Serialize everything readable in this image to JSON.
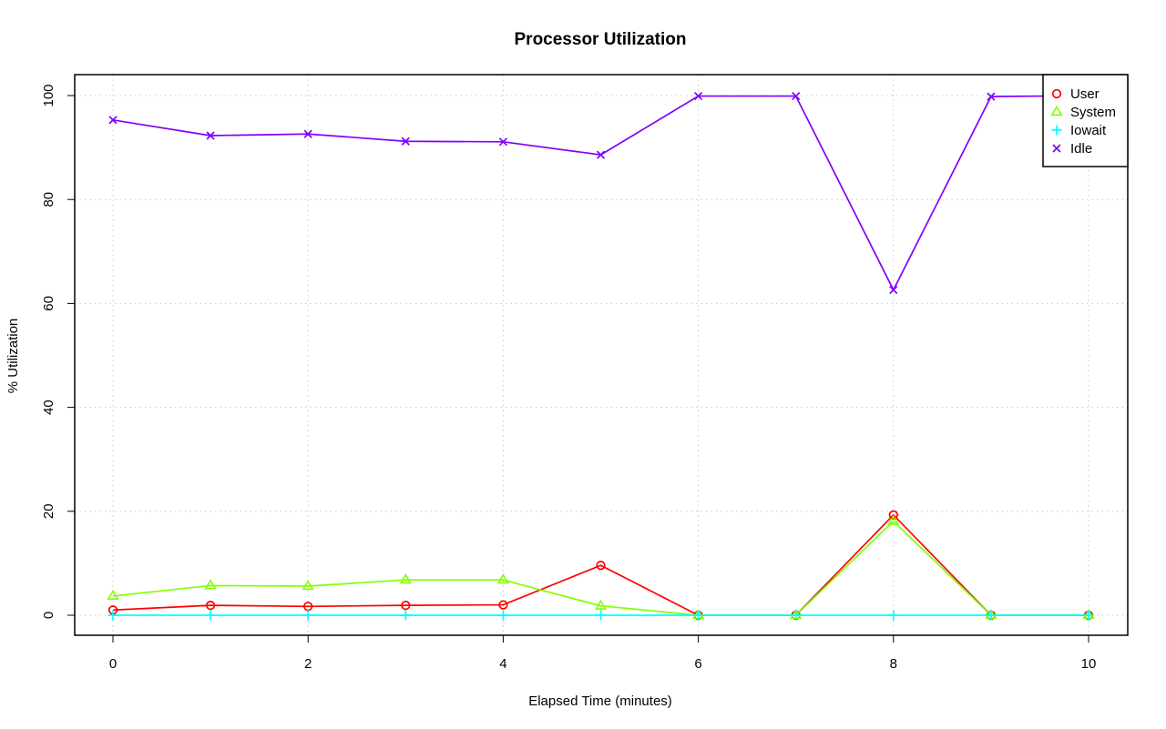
{
  "chart_data": {
    "type": "line",
    "title": "Processor Utilization",
    "xlabel": "Elapsed Time (minutes)",
    "ylabel": "% Utilization",
    "x": [
      0,
      1,
      2,
      3,
      4,
      5,
      6,
      7,
      8,
      9,
      10
    ],
    "xlim": [
      0,
      10
    ],
    "ylim": [
      0,
      100
    ],
    "xticks": [
      0,
      2,
      4,
      6,
      8,
      10
    ],
    "yticks": [
      0,
      20,
      40,
      60,
      80,
      100
    ],
    "grid": true,
    "legend_position": "top-right",
    "series": [
      {
        "name": "User",
        "color": "#ff0000",
        "marker": "circle",
        "values": [
          1.0,
          1.9,
          1.7,
          1.9,
          2.0,
          9.6,
          0.0,
          0.0,
          19.3,
          0.0,
          0.0
        ]
      },
      {
        "name": "System",
        "color": "#80ff00",
        "marker": "triangle",
        "values": [
          3.7,
          5.7,
          5.6,
          6.8,
          6.8,
          1.8,
          0.0,
          0.0,
          18.1,
          0.0,
          0.0
        ]
      },
      {
        "name": "Iowait",
        "color": "#00ffff",
        "marker": "plus",
        "values": [
          0,
          0,
          0,
          0,
          0,
          0,
          0,
          0,
          0,
          0,
          0
        ]
      },
      {
        "name": "Idle",
        "color": "#8000ff",
        "marker": "cross",
        "values": [
          95.3,
          92.3,
          92.6,
          91.2,
          91.1,
          88.6,
          99.9,
          99.9,
          62.6,
          99.8,
          100.0
        ]
      }
    ]
  }
}
